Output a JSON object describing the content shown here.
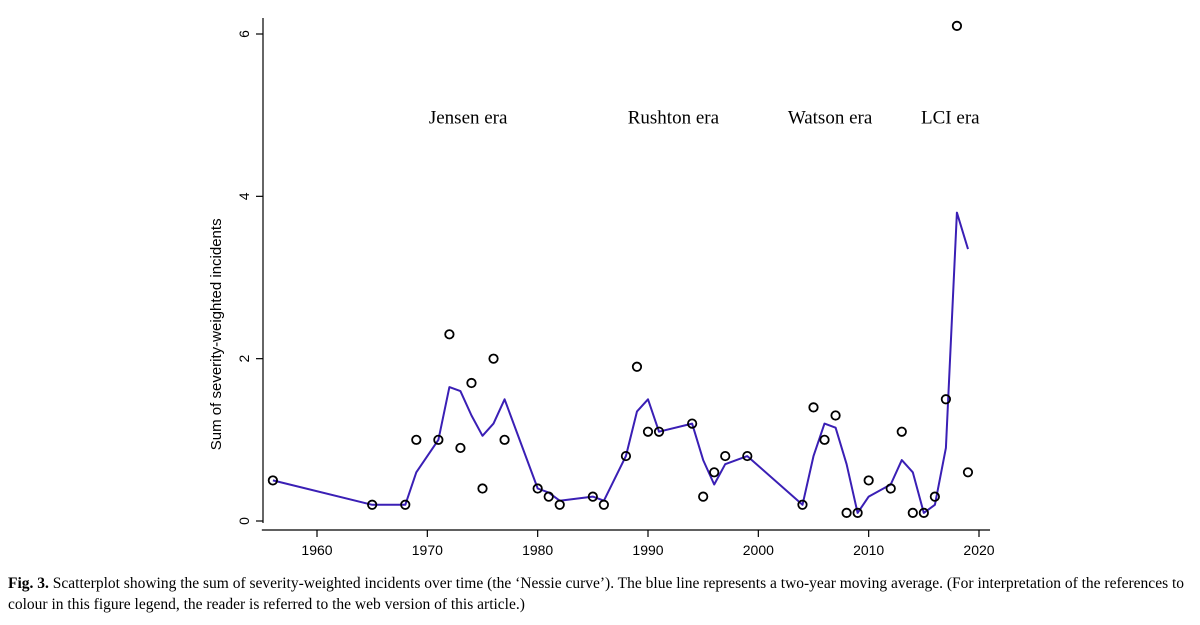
{
  "chart_data": {
    "type": "scatter",
    "ylabel": "Sum of severity-weighted incidents",
    "xlabel": "",
    "xlim": [
      1955,
      2021
    ],
    "ylim": [
      0,
      6.1
    ],
    "x_ticks": [
      1960,
      1970,
      1980,
      1990,
      2000,
      2010,
      2020
    ],
    "y_ticks": [
      0,
      2,
      4,
      6
    ],
    "grid": false,
    "annotations": [
      {
        "text": "Jensen era",
        "x": 1973.7,
        "y": 4.9
      },
      {
        "text": "Rushton era",
        "x": 1992.3,
        "y": 4.9
      },
      {
        "text": "Watson era",
        "x": 2006.5,
        "y": 4.9
      },
      {
        "text": "LCI era",
        "x": 2017.4,
        "y": 4.9
      }
    ],
    "points": [
      {
        "x": 1956,
        "y": 0.5
      },
      {
        "x": 1965,
        "y": 0.2
      },
      {
        "x": 1968,
        "y": 0.2
      },
      {
        "x": 1969,
        "y": 1.0
      },
      {
        "x": 1971,
        "y": 1.0
      },
      {
        "x": 1972,
        "y": 2.3
      },
      {
        "x": 1973,
        "y": 0.9
      },
      {
        "x": 1974,
        "y": 1.7
      },
      {
        "x": 1975,
        "y": 0.4
      },
      {
        "x": 1976,
        "y": 2.0
      },
      {
        "x": 1977,
        "y": 1.0
      },
      {
        "x": 1980,
        "y": 0.4
      },
      {
        "x": 1981,
        "y": 0.3
      },
      {
        "x": 1982,
        "y": 0.2
      },
      {
        "x": 1985,
        "y": 0.3
      },
      {
        "x": 1986,
        "y": 0.2
      },
      {
        "x": 1988,
        "y": 0.8
      },
      {
        "x": 1989,
        "y": 1.9
      },
      {
        "x": 1990,
        "y": 1.1
      },
      {
        "x": 1991,
        "y": 1.1
      },
      {
        "x": 1994,
        "y": 1.2
      },
      {
        "x": 1995,
        "y": 0.3
      },
      {
        "x": 1996,
        "y": 0.6
      },
      {
        "x": 1997,
        "y": 0.8
      },
      {
        "x": 1999,
        "y": 0.8
      },
      {
        "x": 2004,
        "y": 0.2
      },
      {
        "x": 2005,
        "y": 1.4
      },
      {
        "x": 2006,
        "y": 1.0
      },
      {
        "x": 2007,
        "y": 1.3
      },
      {
        "x": 2008,
        "y": 0.1
      },
      {
        "x": 2009,
        "y": 0.1
      },
      {
        "x": 2010,
        "y": 0.5
      },
      {
        "x": 2012,
        "y": 0.4
      },
      {
        "x": 2013,
        "y": 1.1
      },
      {
        "x": 2014,
        "y": 0.1
      },
      {
        "x": 2015,
        "y": 0.1
      },
      {
        "x": 2016,
        "y": 0.3
      },
      {
        "x": 2017,
        "y": 1.5
      },
      {
        "x": 2018,
        "y": 6.1
      },
      {
        "x": 2019,
        "y": 0.6
      }
    ],
    "moving_average": {
      "color": "#3a1fb5",
      "points": [
        {
          "x": 1956,
          "y": 0.5
        },
        {
          "x": 1965,
          "y": 0.2
        },
        {
          "x": 1968,
          "y": 0.2
        },
        {
          "x": 1969,
          "y": 0.6
        },
        {
          "x": 1971,
          "y": 1.0
        },
        {
          "x": 1972,
          "y": 1.65
        },
        {
          "x": 1973,
          "y": 1.6
        },
        {
          "x": 1974,
          "y": 1.3
        },
        {
          "x": 1975,
          "y": 1.05
        },
        {
          "x": 1976,
          "y": 1.2
        },
        {
          "x": 1977,
          "y": 1.5
        },
        {
          "x": 1980,
          "y": 0.4
        },
        {
          "x": 1981,
          "y": 0.35
        },
        {
          "x": 1982,
          "y": 0.25
        },
        {
          "x": 1985,
          "y": 0.3
        },
        {
          "x": 1986,
          "y": 0.25
        },
        {
          "x": 1988,
          "y": 0.8
        },
        {
          "x": 1989,
          "y": 1.35
        },
        {
          "x": 1990,
          "y": 1.5
        },
        {
          "x": 1991,
          "y": 1.1
        },
        {
          "x": 1994,
          "y": 1.2
        },
        {
          "x": 1995,
          "y": 0.75
        },
        {
          "x": 1996,
          "y": 0.45
        },
        {
          "x": 1997,
          "y": 0.7
        },
        {
          "x": 1999,
          "y": 0.8
        },
        {
          "x": 2004,
          "y": 0.2
        },
        {
          "x": 2005,
          "y": 0.8
        },
        {
          "x": 2006,
          "y": 1.2
        },
        {
          "x": 2007,
          "y": 1.15
        },
        {
          "x": 2008,
          "y": 0.7
        },
        {
          "x": 2009,
          "y": 0.1
        },
        {
          "x": 2010,
          "y": 0.3
        },
        {
          "x": 2012,
          "y": 0.45
        },
        {
          "x": 2013,
          "y": 0.75
        },
        {
          "x": 2014,
          "y": 0.6
        },
        {
          "x": 2015,
          "y": 0.1
        },
        {
          "x": 2016,
          "y": 0.2
        },
        {
          "x": 2017,
          "y": 0.9
        },
        {
          "x": 2018,
          "y": 3.8
        },
        {
          "x": 2019,
          "y": 3.35
        }
      ]
    }
  },
  "caption": {
    "fig_label": "Fig. 3.",
    "text": " Scatterplot showing the sum of severity-weighted incidents over time (the ‘Nessie curve’). The blue line represents a two-year moving average. (For interpretation of the references to colour in this figure legend, the reader is referred to the web version of this article.)"
  }
}
